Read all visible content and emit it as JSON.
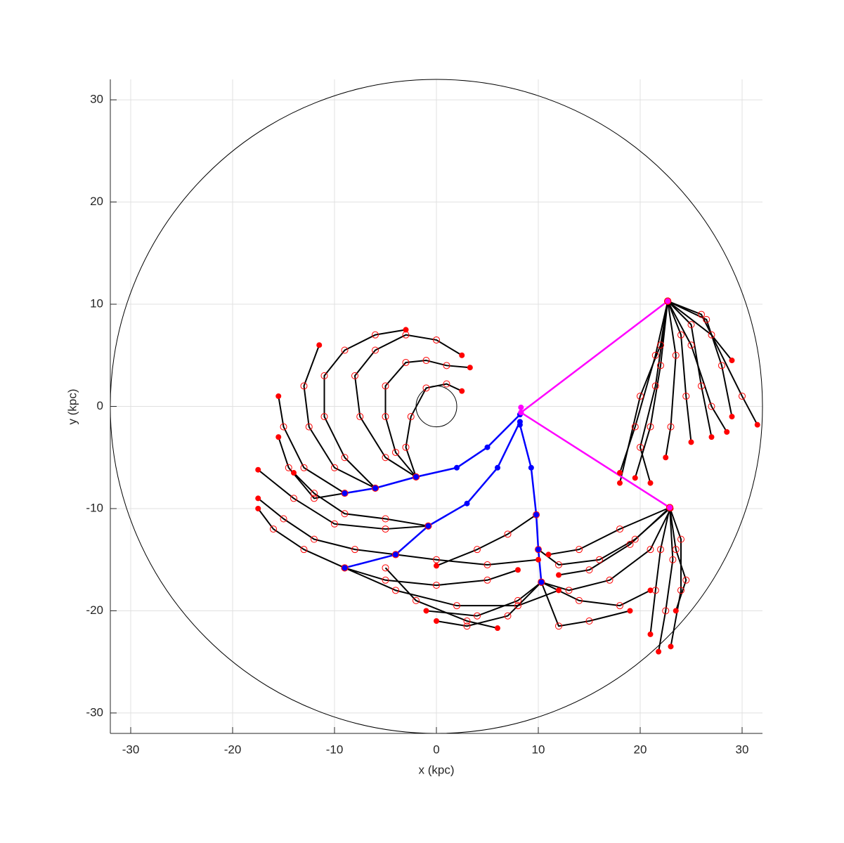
{
  "chart_data": {
    "type": "line",
    "xlabel": "x (kpc)",
    "ylabel": "y (kpc)",
    "xlim": [
      -32,
      32
    ],
    "ylim": [
      -32,
      32
    ],
    "xticks": [
      -30,
      -20,
      -10,
      0,
      10,
      20,
      30
    ],
    "yticks": [
      -30,
      -20,
      -10,
      0,
      10,
      20,
      30
    ],
    "grid": true,
    "circles": [
      {
        "x": 0,
        "y": 0,
        "r": 32,
        "color": "#000000"
      },
      {
        "x": 0,
        "y": 0,
        "r": 2,
        "color": "#000000"
      }
    ],
    "series": [
      {
        "color": "#000000",
        "marker_color": "#ff0000",
        "x": [
          -2,
          -5,
          -7.5,
          -8,
          -6,
          -3,
          0,
          2.5
        ],
        "y": [
          -6.9,
          -5,
          -1,
          3,
          5.5,
          7,
          6.5,
          5
        ]
      },
      {
        "color": "#000000",
        "marker_color": "#ff0000",
        "x": [
          -2,
          -4,
          -5,
          -5,
          -3,
          -1,
          1,
          3.3
        ],
        "y": [
          -6.9,
          -4.5,
          -1,
          2,
          4.3,
          4.5,
          4,
          3.8
        ]
      },
      {
        "color": "#000000",
        "marker_color": "#ff0000",
        "x": [
          -2,
          -3,
          -2.5,
          -1,
          1,
          2.5
        ],
        "y": [
          -6.9,
          -4,
          -1,
          1.8,
          2.2,
          1.5
        ]
      },
      {
        "color": "#000000",
        "marker_color": "#ff0000",
        "x": [
          -6,
          -9,
          -11,
          -11,
          -9,
          -6,
          -3
        ],
        "y": [
          -8,
          -5,
          -1,
          3,
          5.5,
          7,
          7.5
        ]
      },
      {
        "color": "#000000",
        "marker_color": "#ff0000",
        "x": [
          -6,
          -10,
          -12.5,
          -13,
          -11.5
        ],
        "y": [
          -8,
          -6,
          -2,
          2,
          6
        ]
      },
      {
        "color": "#000000",
        "marker_color": "#ff0000",
        "x": [
          -9,
          -13,
          -15,
          -15.5
        ],
        "y": [
          -8.5,
          -6,
          -2,
          1
        ]
      },
      {
        "color": "#000000",
        "marker_color": "#ff0000",
        "x": [
          -9,
          -12,
          -14.5,
          -15.5
        ],
        "y": [
          -8.5,
          -9,
          -6,
          -3
        ]
      },
      {
        "color": "#000000",
        "marker_color": "#ff0000",
        "x": [
          -0.8,
          -5,
          -9,
          -12,
          -14
        ],
        "y": [
          -11.7,
          -11,
          -10.5,
          -8.5,
          -6.5
        ]
      },
      {
        "color": "#000000",
        "marker_color": "#ff0000",
        "x": [
          -0.8,
          -5,
          -10,
          -14,
          -17.5
        ],
        "y": [
          -11.7,
          -12,
          -11.5,
          -9,
          -6.2
        ]
      },
      {
        "color": "#000000",
        "marker_color": "#ff0000",
        "x": [
          -4,
          -8,
          -12,
          -15,
          -17.5
        ],
        "y": [
          -14.5,
          -14,
          -13,
          -11,
          -9
        ]
      },
      {
        "color": "#000000",
        "marker_color": "#ff0000",
        "x": [
          -9,
          -13,
          -16,
          -17.5
        ],
        "y": [
          -15.8,
          -14,
          -12,
          -10
        ]
      },
      {
        "color": "#000000",
        "marker_color": "#ff0000",
        "x": [
          -9,
          -5,
          0,
          5,
          8
        ],
        "y": [
          -15.8,
          -17,
          -17.5,
          -17,
          -16
        ]
      },
      {
        "color": "#000000",
        "marker_color": "#ff0000",
        "x": [
          -9,
          -4,
          2,
          8,
          12
        ],
        "y": [
          -15.8,
          -18,
          -19.5,
          -19.5,
          -18
        ]
      },
      {
        "color": "#000000",
        "marker_color": "#ff0000",
        "x": [
          -4,
          0,
          5,
          10
        ],
        "y": [
          -14.5,
          -15,
          -15.5,
          -15
        ]
      },
      {
        "color": "#000000",
        "marker_color": "#ff0000",
        "x": [
          9.8,
          7,
          4,
          0
        ],
        "y": [
          -10.6,
          -12.5,
          -14,
          -15.6
        ]
      },
      {
        "color": "#000000",
        "marker_color": "#ff0000",
        "x": [
          10,
          12,
          16,
          19.5,
          22.9
        ],
        "y": [
          -14,
          -15.5,
          -15,
          -13,
          -10
        ]
      },
      {
        "color": "#000000",
        "marker_color": "#ff0000",
        "x": [
          10.3,
          13,
          17,
          21,
          23
        ],
        "y": [
          -17.2,
          -18,
          -17,
          -14,
          -10
        ]
      },
      {
        "color": "#000000",
        "marker_color": "#ff0000",
        "x": [
          10.3,
          8,
          4,
          -1
        ],
        "y": [
          -17.2,
          -19,
          -20.5,
          -20
        ]
      },
      {
        "color": "#000000",
        "marker_color": "#ff0000",
        "x": [
          10.3,
          14,
          18,
          21
        ],
        "y": [
          -17.2,
          -19,
          -19.5,
          -18
        ]
      },
      {
        "color": "#000000",
        "marker_color": "#ff0000",
        "x": [
          10.3,
          7,
          3,
          0
        ],
        "y": [
          -17.2,
          -20.5,
          -21.5,
          -21
        ]
      },
      {
        "color": "#000000",
        "marker_color": "#ff0000",
        "x": [
          10.3,
          12,
          15,
          19
        ],
        "y": [
          -17.2,
          -21.5,
          -21,
          -20
        ]
      },
      {
        "color": "#000000",
        "marker_color": "#ff0000",
        "x": [
          -5,
          -2,
          3,
          6
        ],
        "y": [
          -15.8,
          -19,
          -21,
          -21.7
        ]
      },
      {
        "color": "#000000",
        "marker_color": "#ff0000",
        "x": [
          22.9,
          22,
          21.5,
          21
        ],
        "y": [
          -9.9,
          -14,
          -18,
          -22.3
        ]
      },
      {
        "color": "#000000",
        "marker_color": "#ff0000",
        "x": [
          22.9,
          24,
          24,
          23
        ],
        "y": [
          -9.9,
          -13,
          -18,
          -23.5
        ]
      },
      {
        "color": "#000000",
        "marker_color": "#ff0000",
        "x": [
          22.9,
          23.5,
          24.5,
          23.5
        ],
        "y": [
          -9.9,
          -14,
          -17,
          -20
        ]
      },
      {
        "color": "#000000",
        "marker_color": "#ff0000",
        "x": [
          22.9,
          23.2,
          22.5,
          21.8
        ],
        "y": [
          -9.9,
          -15,
          -20,
          -24
        ]
      },
      {
        "color": "#000000",
        "marker_color": "#ff0000",
        "x": [
          22.9,
          18,
          14,
          11
        ],
        "y": [
          -9.9,
          -12,
          -14,
          -14.5
        ]
      },
      {
        "color": "#000000",
        "marker_color": "#ff0000",
        "x": [
          22.9,
          19,
          15,
          12
        ],
        "y": [
          -9.9,
          -13.5,
          -16,
          -16.5
        ]
      },
      {
        "color": "#000000",
        "marker_color": "#ff0000",
        "x": [
          22.7,
          22,
          20,
          18
        ],
        "y": [
          10.3,
          6,
          1,
          -7.5
        ]
      },
      {
        "color": "#000000",
        "marker_color": "#ff0000",
        "x": [
          22.7,
          22,
          21,
          19.5
        ],
        "y": [
          10.3,
          4,
          -2,
          -7
        ]
      },
      {
        "color": "#000000",
        "marker_color": "#ff0000",
        "x": [
          22.7,
          21.5,
          20,
          21
        ],
        "y": [
          10.3,
          2,
          -4,
          -7.5
        ]
      },
      {
        "color": "#000000",
        "marker_color": "#ff0000",
        "x": [
          22.7,
          24,
          24.5,
          25
        ],
        "y": [
          10.3,
          7,
          1,
          -3.5
        ]
      },
      {
        "color": "#000000",
        "marker_color": "#ff0000",
        "x": [
          22.7,
          25,
          26,
          27
        ],
        "y": [
          10.3,
          8,
          2,
          -3
        ]
      },
      {
        "color": "#000000",
        "marker_color": "#ff0000",
        "x": [
          22.7,
          26.5,
          28,
          29
        ],
        "y": [
          10.3,
          8.5,
          4,
          -1
        ]
      },
      {
        "color": "#000000",
        "marker_color": "#ff0000",
        "x": [
          22.7,
          26,
          30,
          31.5
        ],
        "y": [
          10.3,
          9,
          1,
          -1.8
        ]
      },
      {
        "color": "#000000",
        "marker_color": "#ff0000",
        "x": [
          22.7,
          27,
          29
        ],
        "y": [
          10.3,
          7,
          4.5
        ]
      },
      {
        "color": "#000000",
        "marker_color": "#ff0000",
        "x": [
          22.7,
          23.5,
          23,
          22.5
        ],
        "y": [
          10.3,
          5,
          -2,
          -5
        ]
      },
      {
        "color": "#000000",
        "marker_color": "#ff0000",
        "x": [
          22.7,
          21.5,
          19.5,
          18
        ],
        "y": [
          10.3,
          5,
          -2,
          -6.5
        ]
      },
      {
        "color": "#000000",
        "marker_color": "#ff0000",
        "x": [
          22.7,
          25,
          27,
          28.5
        ],
        "y": [
          10.3,
          6,
          0,
          -2.5
        ]
      },
      {
        "color": "#0000ff",
        "marker_color": "#0000ff",
        "x": [
          8.2,
          5,
          2,
          -2,
          -6,
          -9
        ],
        "y": [
          -0.8,
          -4,
          -6,
          -6.9,
          -8,
          -8.5
        ]
      },
      {
        "color": "#0000ff",
        "marker_color": "#0000ff",
        "x": [
          8.2,
          6,
          3,
          -0.8,
          -4,
          -9
        ],
        "y": [
          -1.5,
          -6,
          -9.5,
          -11.7,
          -14.5,
          -15.8
        ]
      },
      {
        "color": "#0000ff",
        "marker_color": "#0000ff",
        "x": [
          8.2,
          9.3,
          9.8,
          10,
          10.3
        ],
        "y": [
          -1.8,
          -6,
          -10.6,
          -14,
          -17.2
        ]
      },
      {
        "color": "#ff00ff",
        "marker_color": "#ff00ff",
        "x": [
          8.3,
          8.3,
          22.7
        ],
        "y": [
          -0.1,
          -0.6,
          10.3
        ]
      },
      {
        "color": "#ff00ff",
        "marker_color": "#ff00ff",
        "x": [
          8.3,
          22.9
        ],
        "y": [
          -0.6,
          -9.9
        ]
      }
    ]
  }
}
